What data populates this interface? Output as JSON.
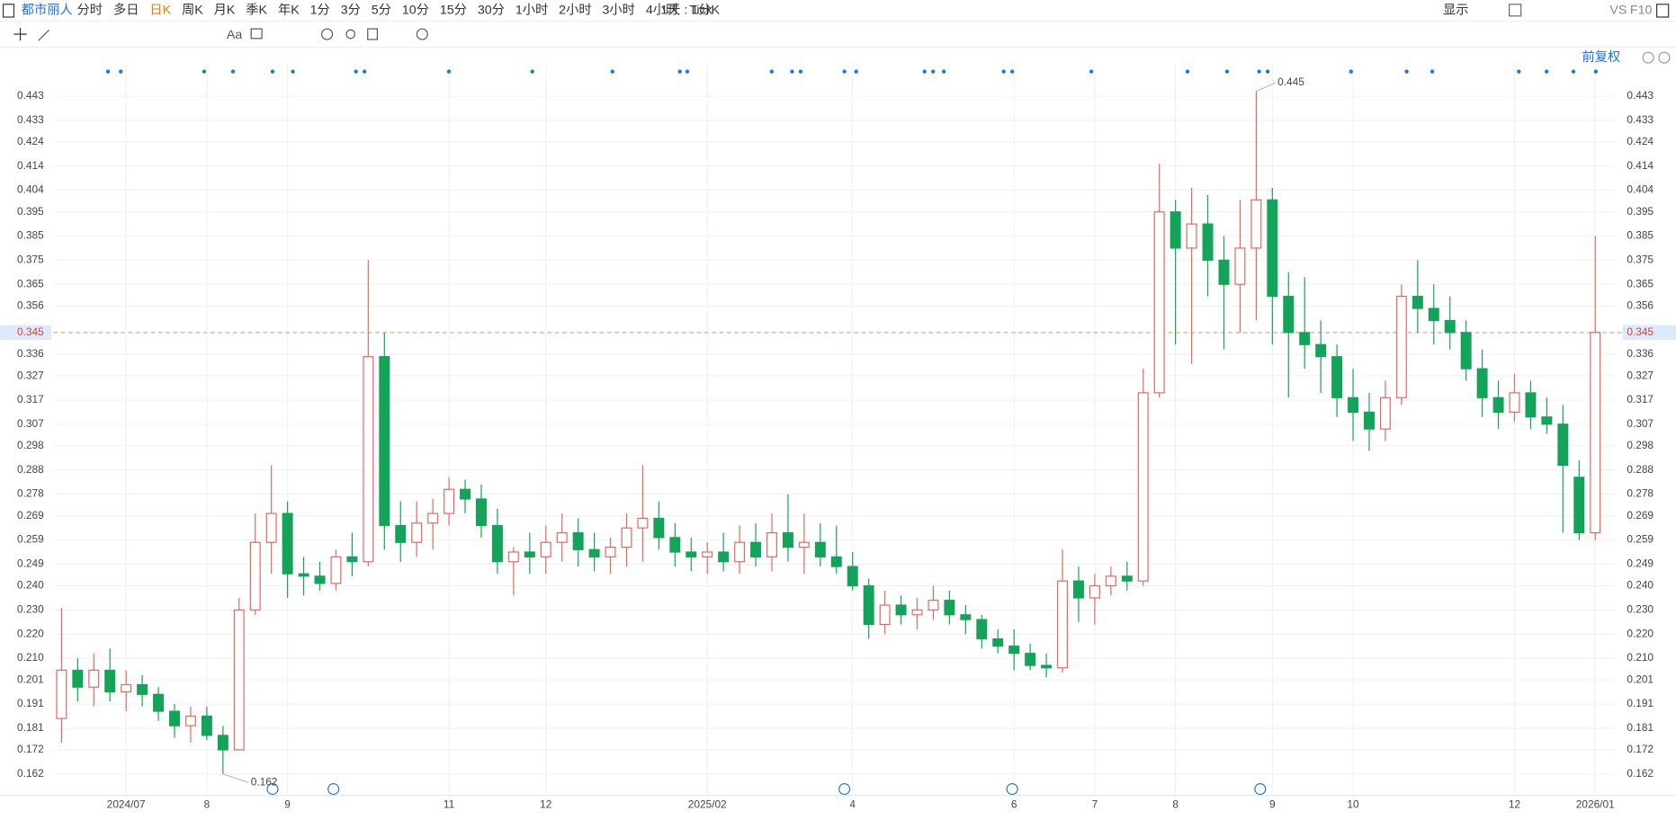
{
  "toolbar": {
    "symbol": "都市丽人",
    "periods": [
      "分时",
      "多日",
      "日K",
      "周K",
      "月K",
      "季K",
      "年K",
      "1分",
      "3分",
      "5分",
      "10分",
      "15分",
      "30分",
      "1小时",
      "2小时",
      "3小时",
      "4小时",
      "Tick"
    ],
    "interval": "1天 : 1分K",
    "display": "显示",
    "vs": "VS",
    "f10": "F10",
    "text_tool": "Aa",
    "adjust": "前复权"
  },
  "chart_data": {
    "type": "candlestick",
    "categories": [
      null,
      null,
      null,
      null,
      "2024/07",
      null,
      null,
      null,
      null,
      "8",
      null,
      null,
      null,
      null,
      "9",
      null,
      null,
      null,
      null,
      null,
      null,
      null,
      null,
      null,
      "11",
      null,
      null,
      null,
      null,
      null,
      "12",
      null,
      null,
      null,
      null,
      null,
      null,
      null,
      null,
      null,
      "2025/02",
      null,
      null,
      null,
      null,
      null,
      null,
      null,
      null,
      "4",
      null,
      null,
      null,
      null,
      null,
      null,
      null,
      null,
      null,
      "6",
      null,
      null,
      null,
      null,
      "7",
      null,
      null,
      null,
      null,
      "8",
      null,
      null,
      null,
      null,
      null,
      "9",
      null,
      null,
      null,
      null,
      "10",
      null,
      null,
      null,
      null,
      null,
      null,
      null,
      null,
      null,
      "12",
      null,
      null,
      null,
      null,
      "2026/01"
    ],
    "open": [
      0.185,
      0.205,
      0.198,
      0.205,
      0.196,
      0.199,
      0.195,
      0.188,
      0.182,
      0.186,
      0.178,
      0.172,
      0.23,
      0.258,
      0.27,
      0.245,
      0.244,
      0.241,
      0.252,
      0.25,
      0.335,
      0.265,
      0.258,
      0.266,
      0.27,
      0.28,
      0.276,
      0.265,
      0.25,
      0.254,
      0.252,
      0.258,
      0.262,
      0.255,
      0.252,
      0.256,
      0.264,
      0.268,
      0.26,
      0.254,
      0.252,
      0.254,
      0.25,
      0.258,
      0.252,
      0.262,
      0.256,
      0.258,
      0.252,
      0.248,
      0.24,
      0.224,
      0.232,
      0.228,
      0.23,
      0.234,
      0.228,
      0.226,
      0.218,
      0.215,
      0.212,
      0.207,
      0.206,
      0.242,
      0.235,
      0.24,
      0.244,
      0.242,
      0.32,
      0.395,
      0.38,
      0.39,
      0.375,
      0.365,
      0.38,
      0.4,
      0.36,
      0.345,
      0.34,
      0.335,
      0.318,
      0.312,
      0.305,
      0.318,
      0.36,
      0.355,
      0.35,
      0.345,
      0.33,
      0.318,
      0.312,
      0.32,
      0.31,
      0.307,
      0.285,
      0.262
    ],
    "high": [
      0.231,
      0.21,
      0.212,
      0.214,
      0.205,
      0.203,
      0.198,
      0.191,
      0.19,
      0.19,
      0.182,
      0.235,
      0.27,
      0.29,
      0.275,
      0.252,
      0.25,
      0.255,
      0.262,
      0.375,
      0.345,
      0.275,
      0.275,
      0.276,
      0.285,
      0.284,
      0.282,
      0.272,
      0.256,
      0.262,
      0.265,
      0.27,
      0.268,
      0.262,
      0.26,
      0.27,
      0.29,
      0.275,
      0.266,
      0.26,
      0.258,
      0.262,
      0.265,
      0.266,
      0.27,
      0.278,
      0.27,
      0.266,
      0.265,
      0.254,
      0.243,
      0.238,
      0.236,
      0.235,
      0.24,
      0.238,
      0.232,
      0.228,
      0.222,
      0.222,
      0.216,
      0.212,
      0.255,
      0.248,
      0.245,
      0.248,
      0.25,
      0.33,
      0.415,
      0.4,
      0.405,
      0.402,
      0.385,
      0.4,
      0.445,
      0.405,
      0.37,
      0.368,
      0.35,
      0.34,
      0.33,
      0.32,
      0.325,
      0.365,
      0.375,
      0.365,
      0.36,
      0.35,
      0.338,
      0.325,
      0.328,
      0.325,
      0.318,
      0.315,
      0.292,
      0.385
    ],
    "low": [
      0.175,
      0.192,
      0.19,
      0.192,
      0.188,
      0.19,
      0.184,
      0.177,
      0.175,
      0.176,
      0.162,
      0.172,
      0.228,
      0.245,
      0.235,
      0.236,
      0.238,
      0.238,
      0.244,
      0.248,
      0.255,
      0.25,
      0.252,
      0.255,
      0.265,
      0.27,
      0.26,
      0.245,
      0.236,
      0.245,
      0.245,
      0.25,
      0.248,
      0.246,
      0.245,
      0.248,
      0.25,
      0.255,
      0.248,
      0.246,
      0.245,
      0.246,
      0.245,
      0.248,
      0.246,
      0.25,
      0.245,
      0.248,
      0.245,
      0.238,
      0.218,
      0.22,
      0.224,
      0.222,
      0.226,
      0.224,
      0.22,
      0.214,
      0.212,
      0.205,
      0.205,
      0.202,
      0.204,
      0.225,
      0.224,
      0.236,
      0.238,
      0.24,
      0.318,
      0.34,
      0.332,
      0.36,
      0.338,
      0.345,
      0.35,
      0.34,
      0.318,
      0.33,
      0.32,
      0.31,
      0.3,
      0.296,
      0.3,
      0.315,
      0.345,
      0.34,
      0.338,
      0.325,
      0.31,
      0.305,
      0.308,
      0.305,
      0.303,
      0.262,
      0.259,
      0.259
    ],
    "close": [
      0.205,
      0.198,
      0.205,
      0.196,
      0.199,
      0.195,
      0.188,
      0.182,
      0.186,
      0.178,
      0.172,
      0.23,
      0.258,
      0.27,
      0.245,
      0.244,
      0.241,
      0.252,
      0.25,
      0.335,
      0.265,
      0.258,
      0.266,
      0.27,
      0.28,
      0.276,
      0.265,
      0.25,
      0.254,
      0.252,
      0.258,
      0.262,
      0.255,
      0.252,
      0.256,
      0.264,
      0.268,
      0.26,
      0.254,
      0.252,
      0.254,
      0.25,
      0.258,
      0.252,
      0.262,
      0.256,
      0.258,
      0.252,
      0.248,
      0.24,
      0.224,
      0.232,
      0.228,
      0.23,
      0.234,
      0.228,
      0.226,
      0.218,
      0.215,
      0.212,
      0.207,
      0.206,
      0.242,
      0.235,
      0.24,
      0.244,
      0.242,
      0.32,
      0.395,
      0.38,
      0.39,
      0.375,
      0.365,
      0.38,
      0.4,
      0.36,
      0.345,
      0.34,
      0.335,
      0.318,
      0.312,
      0.305,
      0.318,
      0.36,
      0.355,
      0.35,
      0.345,
      0.33,
      0.318,
      0.312,
      0.32,
      0.31,
      0.307,
      0.29,
      0.262,
      0.345
    ],
    "up_color": "#e8665c",
    "down_color": "#13a359",
    "ylim": [
      0.1531,
      0.4563
    ],
    "yticks": [
      0.443,
      0.433,
      0.424,
      0.414,
      0.404,
      0.395,
      0.385,
      0.375,
      0.365,
      0.356,
      0.336,
      0.327,
      0.317,
      0.307,
      0.298,
      0.288,
      0.278,
      0.269,
      0.259,
      0.249,
      {
        "value": 0.24,
        "label": "0.240"
      },
      {
        "value": 0.23,
        "label": "0.230"
      },
      {
        "value": 0.22,
        "label": "0.220"
      },
      {
        "value": 0.21,
        "label": "0.210"
      },
      0.201,
      0.191,
      0.181,
      0.172,
      0.162
    ],
    "last_price": 0.345,
    "high_mark": 0.445,
    "low_mark": 0.162,
    "grid": true
  }
}
